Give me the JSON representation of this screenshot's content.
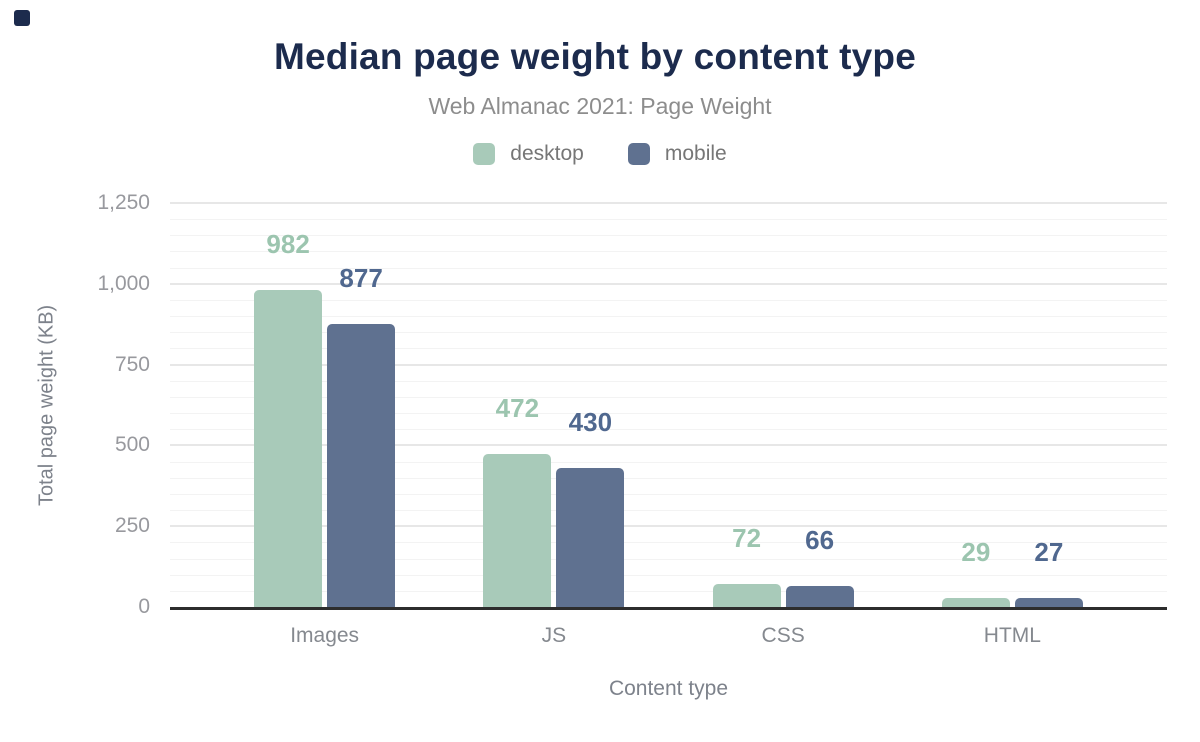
{
  "chart_data": {
    "type": "bar",
    "title": "Median page weight by content type",
    "subtitle": "Web Almanac 2021: Page Weight",
    "xlabel": "Content type",
    "ylabel": "Total page weight (KB)",
    "categories": [
      "Images",
      "JS",
      "CSS",
      "HTML"
    ],
    "series": [
      {
        "name": "desktop",
        "values": [
          982,
          472,
          72,
          29
        ],
        "color": "#a8cab9",
        "label_color": "#9cc5af"
      },
      {
        "name": "mobile",
        "values": [
          877,
          430,
          66,
          27
        ],
        "color": "#5f7190",
        "label_color": "#50688f"
      }
    ],
    "ylim": [
      0,
      1250
    ],
    "yticks": [
      {
        "value": 0,
        "label": "0"
      },
      {
        "value": 250,
        "label": "250"
      },
      {
        "value": 500,
        "label": "500"
      },
      {
        "value": 750,
        "label": "750"
      },
      {
        "value": 1000,
        "label": "1,000"
      },
      {
        "value": 1250,
        "label": "1,250"
      }
    ],
    "minor_tick_step": 50,
    "grid": true,
    "legend_position": "top"
  },
  "colors": {
    "title": "#1c2b4d",
    "subtitle": "#8d8d8d",
    "axis_line": "#2d2d2d",
    "major_grid": "#e7e7e7",
    "minor_grid": "#f3f3f3",
    "corner_mark": "#1c2b4d"
  }
}
